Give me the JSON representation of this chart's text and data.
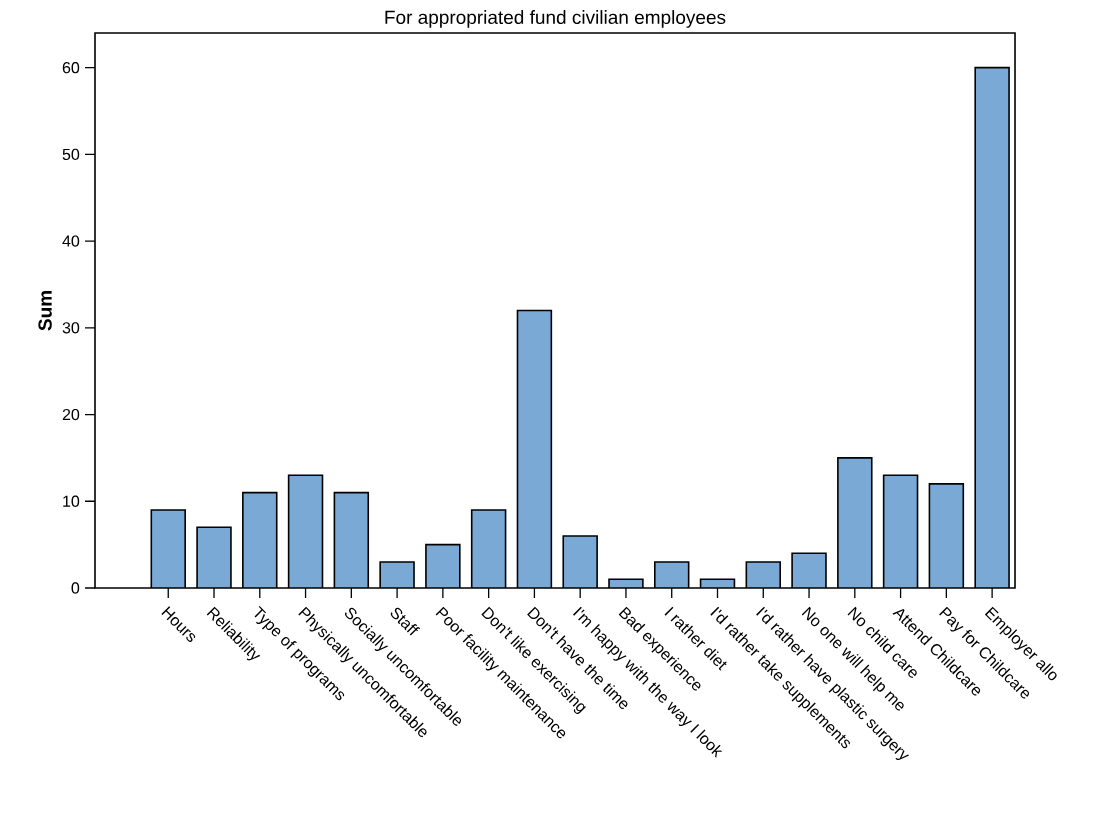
{
  "chart_data": {
    "type": "bar",
    "title": "For appropriated fund civilian employees",
    "ylabel": "Sum",
    "categories": [
      "Hours",
      "Reliability",
      "Type of programs",
      "Physically uncomfortable",
      "Socially uncomfortable",
      "Staff",
      "Poor facility maintenance",
      "Don't like exercising",
      "Don't have the time",
      "I'm happy with the way I look",
      "Bad experience",
      "I rather diet",
      "I'd rather take supplements",
      "I'd rather have plastic surgery",
      "No one will help me",
      "No child care",
      "Attend Childcare",
      "Pay for Childcare",
      "Employer allo"
    ],
    "values": [
      9,
      7,
      11,
      13,
      11,
      3,
      5,
      9,
      32,
      6,
      1,
      3,
      1,
      3,
      4,
      15,
      13,
      12,
      60
    ],
    "color": "#7aa9d6",
    "ylim": [
      0,
      64
    ],
    "yticks": [
      0,
      10,
      20,
      30,
      40,
      50,
      60
    ],
    "grid": false
  }
}
